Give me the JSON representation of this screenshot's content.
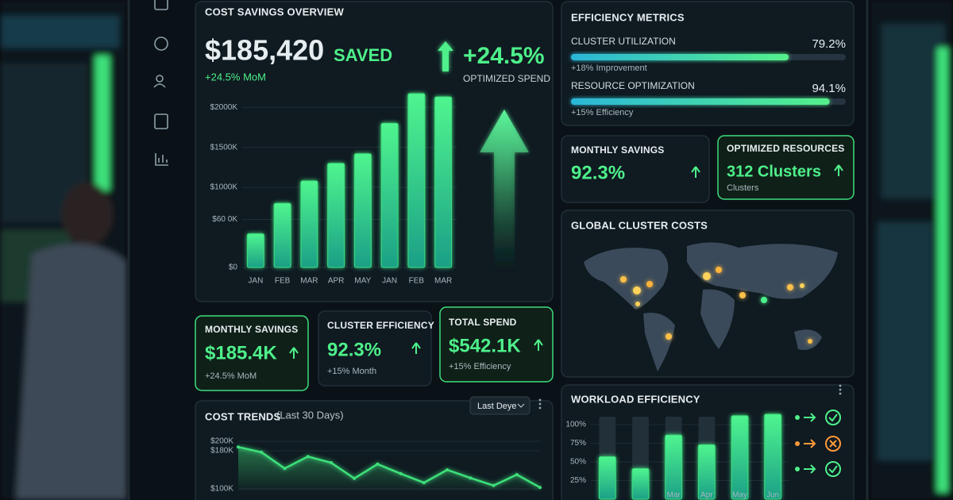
{
  "overview": {
    "title": "COST SAVINGS OVERVIEW",
    "amount": "$185,420",
    "amount_suffix": "SAVED",
    "change": "+24.5% MoM",
    "highlight": "+24.5%",
    "highlight_caption": "OPTIMIZED SPEND",
    "chart": {
      "type": "bar",
      "categories": [
        "JAN",
        "FEB",
        "MAR",
        "APR",
        "MAY",
        "JAN",
        "FEB",
        "MAR"
      ],
      "values": [
        420,
        800,
        1080,
        1300,
        1420,
        1800,
        2170,
        2130
      ],
      "ylim": [
        0,
        2200
      ],
      "yticks": [
        {
          "value": 0,
          "label": "$0"
        },
        {
          "value": 600,
          "label": "$60 0K"
        },
        {
          "value": 1000,
          "label": "$1000K"
        },
        {
          "value": 1500,
          "label": "$1500K"
        },
        {
          "value": 2000,
          "label": "$2000K"
        }
      ],
      "color": "#3ee07a"
    }
  },
  "metrics": {
    "title": "EFFICIENCY METRICS",
    "xlim": [
      0,
      100
    ],
    "items": [
      {
        "label": "CLUSTER UTILIZATION",
        "value": 79.2,
        "value_label": "79.2%",
        "note": "+18% Improvement"
      },
      {
        "label": "RESOURCE OPTIMIZATION",
        "value": 94.1,
        "value_label": "94.1%",
        "note": "+15% Efficiency"
      }
    ]
  },
  "side_cards": [
    {
      "title": "MONTHLY SAVINGS",
      "value": "92.3%"
    },
    {
      "title": "OPTIMIZED RESOURCES",
      "value": "312 Clusters",
      "note": "Clusters"
    }
  ],
  "map": {
    "title": "GLOBAL CLUSTER COSTS"
  },
  "cards": [
    {
      "title": "MONTHLY SAVINGS",
      "value": "$185.4K",
      "note": "+24.5% MoM"
    },
    {
      "title": "CLUSTER EFFICIENCY",
      "value": "92.3%",
      "note": "+15% Month"
    },
    {
      "title": "TOTAL SPEND",
      "value": "$542.1K",
      "note": "+15% Efficiency"
    }
  ],
  "trends": {
    "title": "COST TRENDS",
    "subtitle": "(Last 30 Days)",
    "range_selector": "Last Deye",
    "chart": {
      "type": "line",
      "values": [
        188,
        177,
        143,
        168,
        155,
        122,
        152,
        132,
        113,
        140,
        123,
        107,
        130,
        103
      ],
      "ylim": [
        95,
        205
      ],
      "yticks": [
        {
          "value": 200,
          "label": "$200K"
        },
        {
          "value": 180,
          "label": "$180K"
        },
        {
          "value": 100,
          "label": "$100K"
        }
      ],
      "color": "#3ee07a"
    }
  },
  "workload": {
    "title": "WORKLOAD EFFICIENCY",
    "chart": {
      "type": "bar",
      "categories": [
        null,
        null,
        "Mar",
        "Apr",
        "May",
        "Jun"
      ],
      "values": [
        57,
        41,
        86,
        73,
        112,
        114
      ],
      "ylim": [
        0,
        115
      ],
      "yticks": [
        {
          "value": 25,
          "label": "25%"
        },
        {
          "value": 50,
          "label": "50%"
        },
        {
          "value": 75,
          "label": "75%"
        },
        {
          "value": 100,
          "label": "100%"
        }
      ],
      "color": "#3ee07a"
    }
  }
}
